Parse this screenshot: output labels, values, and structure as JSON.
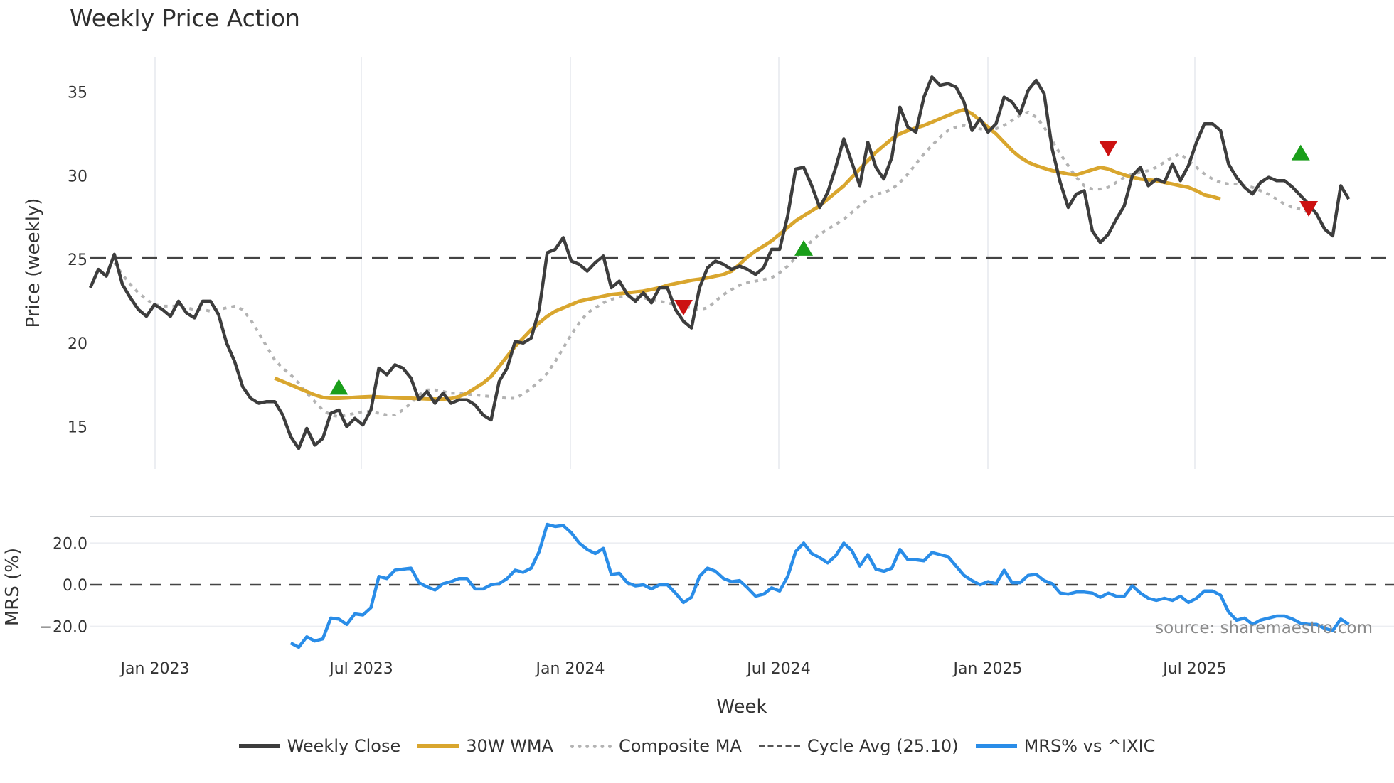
{
  "title": "Weekly Price Action",
  "source_note": "source: sharemaestro.com",
  "colors": {
    "weekly_close": "#3d3d3d",
    "wma30": "#d9a62e",
    "composite_ma": "#b3b3b3",
    "cycle_avg": "#444444",
    "mrs": "#2a8de8",
    "buy_marker": "#1a9e1a",
    "sell_marker": "#cc1111",
    "grid": "#eceef2"
  },
  "legend": [
    {
      "key": "weekly_close",
      "label": "Weekly Close",
      "style": "solid"
    },
    {
      "key": "wma30",
      "label": "30W WMA",
      "style": "solid"
    },
    {
      "key": "composite_ma",
      "label": "Composite MA",
      "style": "dotted"
    },
    {
      "key": "cycle_avg",
      "label": "Cycle Avg (25.10)",
      "style": "dashed"
    },
    {
      "key": "mrs",
      "label": "MRS% vs ^IXIC",
      "style": "solid"
    }
  ],
  "chart_data": [
    {
      "type": "line",
      "title": "Weekly Price Action",
      "xlabel": "Week",
      "ylabel": "Price (weekly)",
      "ylim": [
        12.5,
        37.0
      ],
      "yticks": [
        15,
        20,
        25,
        30,
        35
      ],
      "xticks": [
        "Jan 2023",
        "Jul 2023",
        "Jan 2024",
        "Jul 2024",
        "Jan 2025",
        "Jul 2025"
      ],
      "x_start": "2022-11-07",
      "x_step": "1 week",
      "grid": true,
      "legend_position": "bottom",
      "series": [
        {
          "name": "Weekly Close",
          "start_index": 0,
          "values": [
            23.3,
            24.4,
            24.0,
            25.3,
            23.5,
            22.7,
            22.0,
            21.6,
            22.3,
            22.0,
            21.6,
            22.5,
            21.8,
            21.5,
            22.5,
            22.5,
            21.7,
            20.0,
            18.9,
            17.4,
            16.7,
            16.4,
            16.5,
            16.5,
            15.7,
            14.4,
            13.7,
            14.9,
            13.9,
            14.3,
            15.8,
            16.0,
            15.0,
            15.5,
            15.1,
            16.0,
            18.5,
            18.1,
            18.7,
            18.5,
            17.9,
            16.6,
            17.1,
            16.4,
            17.0,
            16.4,
            16.6,
            16.6,
            16.3,
            15.7,
            15.4,
            17.7,
            18.5,
            20.1,
            20.0,
            20.3,
            22.0,
            25.4,
            25.6,
            26.3,
            24.9,
            24.7,
            24.3,
            24.8,
            25.2,
            23.3,
            23.7,
            22.9,
            22.5,
            23.0,
            22.4,
            23.3,
            23.3,
            22.0,
            21.3,
            20.9,
            23.3,
            24.5,
            24.9,
            24.7,
            24.4,
            24.6,
            24.4,
            24.1,
            24.5,
            25.6,
            25.6,
            27.6,
            30.4,
            30.5,
            29.4,
            28.1,
            29.0,
            30.5,
            32.2,
            30.8,
            29.4,
            32.0,
            30.5,
            29.8,
            31.1,
            34.1,
            32.9,
            32.6,
            34.7,
            35.9,
            35.4,
            35.5,
            35.3,
            34.4,
            32.7,
            33.4,
            32.6,
            33.1,
            34.7,
            34.4,
            33.7,
            35.1,
            35.7,
            34.9,
            31.6,
            29.6,
            28.1,
            28.9,
            29.1,
            26.7,
            26.0,
            26.5,
            27.4,
            28.2,
            30.0,
            30.5,
            29.4,
            29.8,
            29.6,
            30.7,
            29.7,
            30.6,
            32.0,
            33.1,
            33.1,
            32.7,
            30.7,
            29.9,
            29.3,
            28.9,
            29.6,
            29.9,
            29.7,
            29.7,
            29.3,
            28.8,
            28.3,
            27.7,
            26.8,
            26.4,
            29.4,
            28.6
          ]
        },
        {
          "name": "30W WMA",
          "start_index": 23,
          "values": [
            17.9,
            17.7,
            17.5,
            17.3,
            17.1,
            16.9,
            16.75,
            16.7,
            16.7,
            16.72,
            16.75,
            16.78,
            16.8,
            16.78,
            16.75,
            16.72,
            16.7,
            16.7,
            16.68,
            16.66,
            16.65,
            16.65,
            16.68,
            16.8,
            17.0,
            17.3,
            17.6,
            18.0,
            18.6,
            19.2,
            19.8,
            20.3,
            20.8,
            21.2,
            21.6,
            21.9,
            22.1,
            22.3,
            22.5,
            22.6,
            22.7,
            22.8,
            22.9,
            22.95,
            23.0,
            23.05,
            23.1,
            23.2,
            23.3,
            23.45,
            23.55,
            23.65,
            23.75,
            23.82,
            23.9,
            24.0,
            24.1,
            24.3,
            24.7,
            25.15,
            25.5,
            25.8,
            26.1,
            26.5,
            26.9,
            27.3,
            27.6,
            27.9,
            28.2,
            28.6,
            29.0,
            29.4,
            29.9,
            30.4,
            30.9,
            31.4,
            31.8,
            32.2,
            32.5,
            32.7,
            32.85,
            33.0,
            33.2,
            33.4,
            33.6,
            33.8,
            33.95,
            33.7,
            33.3,
            32.9,
            32.5,
            32.0,
            31.5,
            31.1,
            30.8,
            30.6,
            30.45,
            30.3,
            30.2,
            30.1,
            30.05,
            30.2,
            30.35,
            30.5,
            30.4,
            30.2,
            30.05,
            29.9,
            29.8,
            29.75,
            29.7,
            29.6,
            29.5,
            29.4,
            29.3,
            29.1,
            28.85,
            28.75,
            28.6
          ]
        },
        {
          "name": "Composite MA",
          "start_index": 3,
          "values": [
            24.8,
            24.1,
            23.5,
            23.0,
            22.6,
            22.3,
            22.2,
            22.2,
            22.2,
            22.1,
            22.0,
            22.0,
            21.9,
            22.0,
            22.1,
            22.2,
            22.0,
            21.4,
            20.6,
            19.8,
            19.0,
            18.5,
            18.1,
            17.6,
            17.0,
            16.5,
            16.0,
            15.7,
            15.6,
            15.7,
            15.8,
            15.9,
            15.9,
            15.8,
            15.7,
            15.7,
            16.0,
            16.4,
            16.9,
            17.2,
            17.2,
            17.1,
            17.0,
            17.0,
            16.95,
            16.9,
            16.85,
            16.8,
            16.75,
            16.7,
            16.7,
            16.95,
            17.3,
            17.7,
            18.2,
            18.9,
            19.7,
            20.5,
            21.2,
            21.8,
            22.1,
            22.4,
            22.6,
            22.75,
            22.8,
            22.8,
            22.7,
            22.6,
            22.5,
            22.4,
            22.3,
            22.2,
            22.1,
            22.0,
            22.1,
            22.5,
            22.9,
            23.2,
            23.45,
            23.6,
            23.7,
            23.8,
            23.9,
            24.2,
            24.6,
            25.1,
            25.6,
            26.1,
            26.5,
            26.8,
            27.1,
            27.4,
            27.8,
            28.2,
            28.6,
            28.9,
            29.0,
            29.2,
            29.6,
            30.1,
            30.7,
            31.3,
            31.8,
            32.3,
            32.7,
            32.9,
            33.0,
            32.9,
            32.8,
            32.7,
            32.8,
            33.0,
            33.3,
            33.6,
            33.8,
            33.5,
            32.9,
            32.1,
            31.3,
            30.6,
            29.9,
            29.4,
            29.2,
            29.2,
            29.3,
            29.6,
            29.9,
            30.1,
            30.2,
            30.3,
            30.5,
            30.8,
            31.1,
            31.3,
            30.9,
            30.5,
            30.1,
            29.8,
            29.6,
            29.5,
            29.5,
            29.4,
            29.3,
            29.1,
            28.9,
            28.6,
            28.3,
            28.1,
            28.0,
            27.8
          ]
        },
        {
          "name": "Cycle Avg (25.10)",
          "constant": 25.1
        }
      ],
      "markers": [
        {
          "type": "buy",
          "shape": "triangle-up",
          "index": 31,
          "value": 17.3
        },
        {
          "type": "sell",
          "shape": "triangle-down",
          "index": 74,
          "value": 22.2
        },
        {
          "type": "buy",
          "shape": "triangle-up",
          "index": 89,
          "value": 25.6
        },
        {
          "type": "sell",
          "shape": "triangle-down",
          "index": 127,
          "value": 31.7
        },
        {
          "type": "buy",
          "shape": "triangle-up",
          "index": 151,
          "value": 31.3
        },
        {
          "type": "sell",
          "shape": "triangle-down",
          "index": 152,
          "value": 28.1
        }
      ]
    },
    {
      "type": "line",
      "title": "",
      "xlabel": "Week",
      "ylabel": "MRS (%)",
      "ylim": [
        -33,
        33
      ],
      "yticks": [
        -20.0,
        0.0,
        20.0
      ],
      "zero_line": "dashed",
      "series": [
        {
          "name": "MRS% vs ^IXIC",
          "start_index": 25,
          "values": [
            -28,
            -30,
            -25,
            -27,
            -26,
            -16,
            -16.5,
            -19,
            -14,
            -14.5,
            -11,
            4,
            3,
            7,
            7.5,
            8,
            1,
            -1,
            -2.5,
            0.5,
            1.5,
            3,
            3,
            -2,
            -2,
            0,
            0.5,
            3,
            7,
            6,
            8,
            16,
            29,
            28,
            28.5,
            25,
            20,
            17,
            15,
            17.5,
            5,
            5.5,
            1,
            -0.5,
            0,
            -2,
            0,
            0,
            -4,
            -8.5,
            -6,
            4,
            8,
            6.5,
            3,
            1.5,
            2,
            -1.5,
            -5.5,
            -4.5,
            -1.5,
            -3,
            4,
            16,
            20,
            15,
            13,
            10.5,
            14,
            20,
            16.5,
            9,
            14.5,
            7.5,
            6.5,
            8,
            17,
            12,
            12,
            11.5,
            15.5,
            14.5,
            13.5,
            9,
            4.5,
            2,
            0,
            1.5,
            0.5,
            7,
            1,
            1,
            4.5,
            5,
            2,
            0.5,
            -4,
            -4.5,
            -3.5,
            -3.5,
            -4,
            -6,
            -4,
            -5.5,
            -5.5,
            -0.5,
            -4,
            -6.5,
            -7.5,
            -6.5,
            -7.5,
            -5.5,
            -8.5,
            -6.5,
            -3,
            -3,
            -5,
            -13,
            -17,
            -16,
            -19,
            -17,
            -16,
            -15,
            -15,
            -16.5,
            -18.5,
            -19,
            -19,
            -21,
            -22,
            -16.5,
            -19
          ]
        }
      ]
    }
  ],
  "axes": {
    "price": {
      "label": "Price (weekly)",
      "ticks": [
        "35",
        "30",
        "25",
        "20",
        "15"
      ]
    },
    "mrs": {
      "label": "MRS (%)",
      "ticks": [
        "20.0",
        "0.0",
        "−20.0"
      ]
    },
    "x": {
      "label": "Week",
      "ticks": [
        "Jan 2023",
        "Jul 2023",
        "Jan 2024",
        "Jul 2024",
        "Jan 2025",
        "Jul 2025"
      ]
    }
  }
}
